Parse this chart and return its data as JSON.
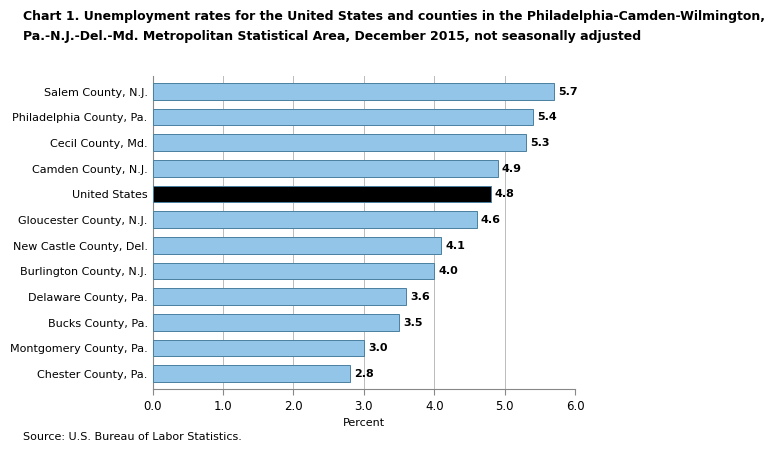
{
  "title_line1": "Chart 1. Unemployment rates for the United States and counties in the Philadelphia-Camden-Wilmington,",
  "title_line2": "Pa.-N.J.-Del.-Md. Metropolitan Statistical Area, December 2015, not seasonally adjusted",
  "categories": [
    "Chester County, Pa.",
    "Montgomery County, Pa.",
    "Bucks County, Pa.",
    "Delaware County, Pa.",
    "Burlington County, N.J.",
    "New Castle County, Del.",
    "Gloucester County, N.J.",
    "United States",
    "Camden County, N.J.",
    "Cecil County, Md.",
    "Philadelphia County, Pa.",
    "Salem County, N.J."
  ],
  "values": [
    2.8,
    3.0,
    3.5,
    3.6,
    4.0,
    4.1,
    4.6,
    4.8,
    4.9,
    5.3,
    5.4,
    5.7
  ],
  "bar_colors": [
    "#92C5E8",
    "#92C5E8",
    "#92C5E8",
    "#92C5E8",
    "#92C5E8",
    "#92C5E8",
    "#92C5E8",
    "#000000",
    "#92C5E8",
    "#92C5E8",
    "#92C5E8",
    "#92C5E8"
  ],
  "edge_color": "#4a7fa0",
  "xlabel": "Percent",
  "xlim": [
    0,
    6.0
  ],
  "xticks": [
    0.0,
    1.0,
    2.0,
    3.0,
    4.0,
    5.0,
    6.0
  ],
  "xtick_labels": [
    "0.0",
    "1.0",
    "2.0",
    "3.0",
    "4.0",
    "5.0",
    "6.0"
  ],
  "source": "Source: U.S. Bureau of Labor Statistics.",
  "title_fontsize": 9.0,
  "label_fontsize": 8.0,
  "value_fontsize": 8.0,
  "tick_fontsize": 8.5,
  "source_fontsize": 8.0,
  "bar_height": 0.65,
  "background_color": "#ffffff",
  "grid_color": "#bbbbbb"
}
